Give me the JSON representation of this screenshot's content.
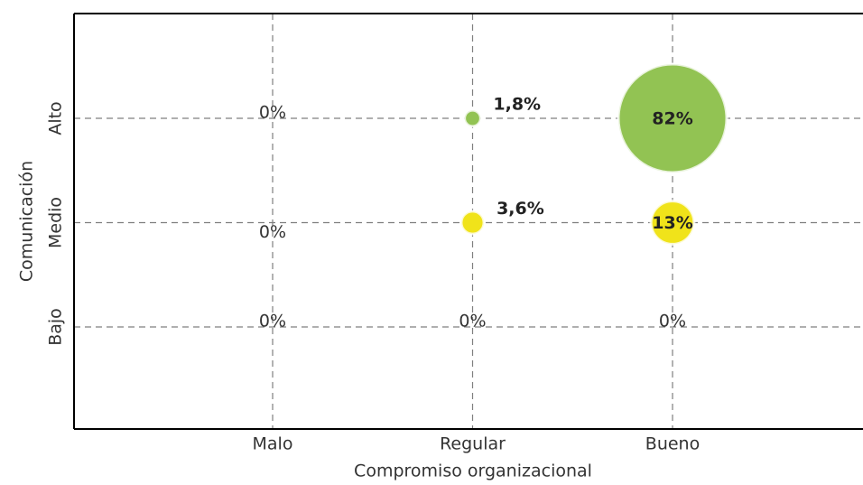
{
  "chart_data": {
    "type": "bubble",
    "x_label": "Compromiso organizacional",
    "y_label": "Comunicación",
    "categories": [
      "Malo",
      "Regular",
      "Bueno"
    ],
    "y_categories": [
      "Bajo",
      "Medio",
      "Alto"
    ],
    "grid": true,
    "series": [
      {
        "values": [
          0,
          0,
          0
        ],
        "value_labels": [
          "0%",
          "0%",
          "0%"
        ]
      },
      {
        "color": "#f0e31a",
        "values": [
          0,
          3.6,
          13
        ],
        "value_labels": [
          "0%",
          "3,6%",
          "13%"
        ]
      },
      {
        "color": "#92c353",
        "values": [
          0,
          1.8,
          82
        ],
        "value_labels": [
          "0%",
          "1,8%",
          "82%"
        ]
      }
    ]
  }
}
